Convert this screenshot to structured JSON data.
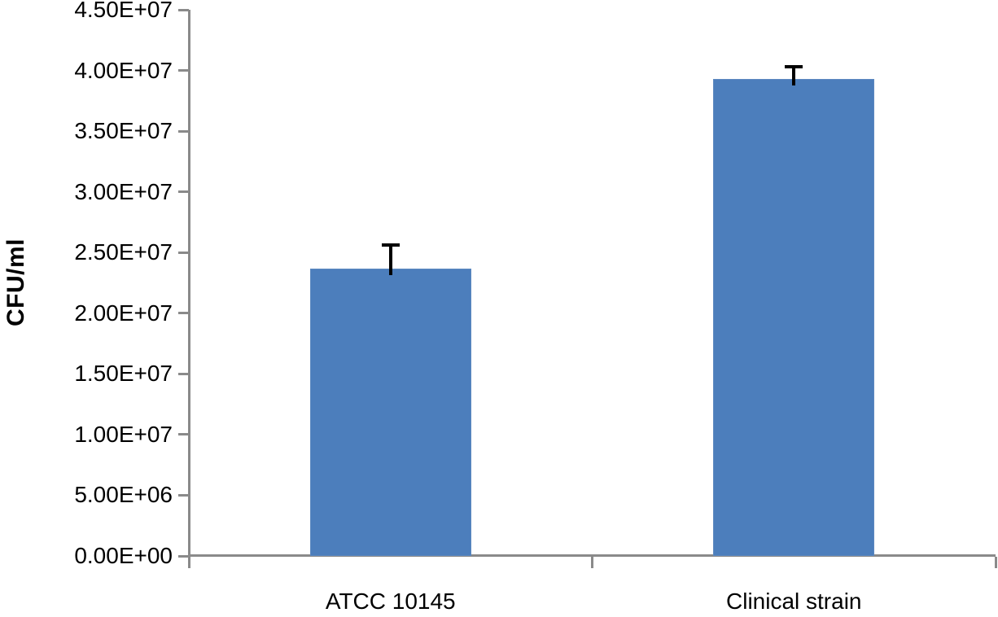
{
  "chart_data": {
    "type": "bar",
    "title": "",
    "xlabel": "",
    "ylabel": "CFU/ml",
    "categories": [
      "ATCC 10145",
      "Clinical strain"
    ],
    "values": [
      23700000,
      39300000
    ],
    "error_plus": [
      1900000,
      1000000
    ],
    "ylim": [
      0,
      45000000
    ],
    "ytick_step": 5000000,
    "ytick_labels": [
      "0.00E+00",
      "5.00E+06",
      "1.00E+07",
      "1.50E+07",
      "2.00E+07",
      "2.50E+07",
      "3.00E+07",
      "3.50E+07",
      "4.00E+07",
      "4.50E+07"
    ],
    "grid": false,
    "legend_position": "none",
    "colors": {
      "bar_fill": "#4c7ebc",
      "bar_border": "#5d89c0",
      "axis": "#8a8a8a",
      "error_bar": "#000000",
      "text": "#000000"
    }
  }
}
